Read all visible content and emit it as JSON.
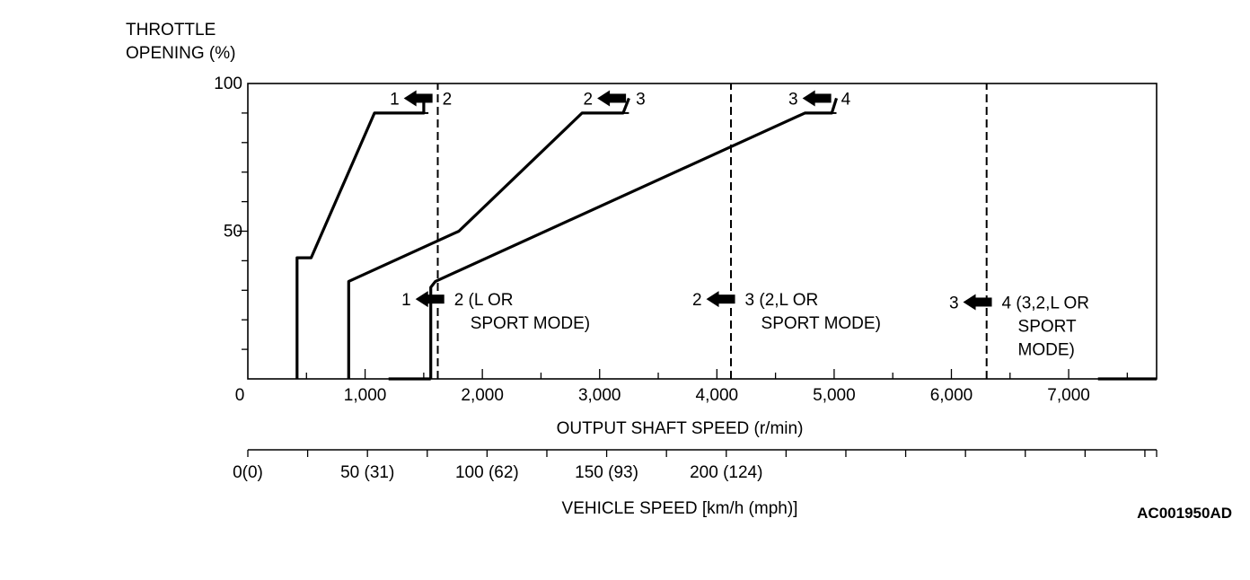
{
  "chart_data": {
    "type": "line",
    "y_axis": {
      "title_lines": [
        "THROTTLE",
        "OPENING (%)"
      ],
      "range": [
        0,
        100
      ],
      "tick_labels": [
        "50",
        "100"
      ],
      "tick_values": [
        50,
        100
      ],
      "minor_step": 10
    },
    "x_axis": {
      "title": "OUTPUT SHAFT SPEED (r/min)",
      "range": [
        0,
        7750
      ],
      "tick_labels": [
        "0",
        "1,000",
        "2,000",
        "3,000",
        "4,000",
        "5,000",
        "6,000",
        "7,000"
      ],
      "tick_values": [
        0,
        1000,
        2000,
        3000,
        4000,
        5000,
        6000,
        7000
      ],
      "minor_step": 500
    },
    "secondary_x_axis": {
      "title": "VEHICLE SPEED [km/h (mph)]",
      "tick_labels": [
        "0(0)",
        "50 (31)",
        "100 (62)",
        "150 (93)",
        "200 (124)"
      ],
      "tick_kmh": [
        0,
        50,
        100,
        150,
        200
      ],
      "rpm_per_kmh": 20.4,
      "minor_step_kmh": 25
    },
    "series": [
      {
        "line": "solid",
        "points": [
          [
            420,
            0
          ],
          [
            420,
            41
          ],
          [
            540,
            41
          ],
          [
            1080,
            90
          ],
          [
            1500,
            90
          ],
          [
            1500,
            95
          ]
        ]
      },
      {
        "line": "dashed",
        "points": [
          [
            1500,
            90
          ],
          [
            1540,
            90
          ]
        ]
      },
      {
        "line": "solid",
        "points": [
          [
            860,
            0
          ],
          [
            860,
            33
          ],
          [
            1800,
            50
          ],
          [
            2850,
            90
          ],
          [
            3200,
            90
          ],
          [
            3250,
            95
          ]
        ]
      },
      {
        "line": "dashed",
        "points": [
          [
            3200,
            90
          ],
          [
            3250,
            90
          ]
        ]
      },
      {
        "line": "solid",
        "points": [
          [
            1560,
            0
          ],
          [
            1560,
            31
          ],
          [
            1600,
            33
          ],
          [
            4750,
            90
          ],
          [
            4980,
            90
          ],
          [
            5020,
            95
          ]
        ]
      },
      {
        "line": "dashed",
        "points": [
          [
            4980,
            90
          ],
          [
            5020,
            90
          ]
        ]
      },
      {
        "line": "dashed",
        "points": [
          [
            1620,
            0
          ],
          [
            1620,
            100
          ]
        ]
      },
      {
        "line": "dashed",
        "points": [
          [
            4120,
            0
          ],
          [
            4120,
            100
          ]
        ]
      },
      {
        "line": "dashed",
        "points": [
          [
            6300,
            0
          ],
          [
            6300,
            100
          ]
        ]
      },
      {
        "line": "solid",
        "points": [
          [
            1200,
            0
          ],
          [
            1560,
            0
          ]
        ]
      },
      {
        "line": "solid",
        "points": [
          [
            7250,
            0
          ],
          [
            7750,
            0
          ]
        ]
      }
    ],
    "annotations": [
      {
        "x": 1460,
        "y": 95,
        "from": "1",
        "to": "2",
        "to_lines": []
      },
      {
        "x": 3110,
        "y": 95,
        "from": "2",
        "to": "3",
        "to_lines": []
      },
      {
        "x": 4860,
        "y": 95,
        "from": "3",
        "to": "4",
        "to_lines": []
      },
      {
        "x": 1560,
        "y": 27,
        "from": "1",
        "to": "2 (L OR",
        "to_lines": [
          "SPORT MODE)"
        ]
      },
      {
        "x": 4040,
        "y": 27,
        "from": "2",
        "to": "3 (2,L OR",
        "to_lines": [
          "SPORT MODE)"
        ]
      },
      {
        "x": 6230,
        "y": 26,
        "from": "3",
        "to": "4 (3,2,L OR",
        "to_lines": [
          "SPORT",
          "MODE)"
        ]
      }
    ],
    "grid": false,
    "figure_code": "AC001950AD"
  }
}
